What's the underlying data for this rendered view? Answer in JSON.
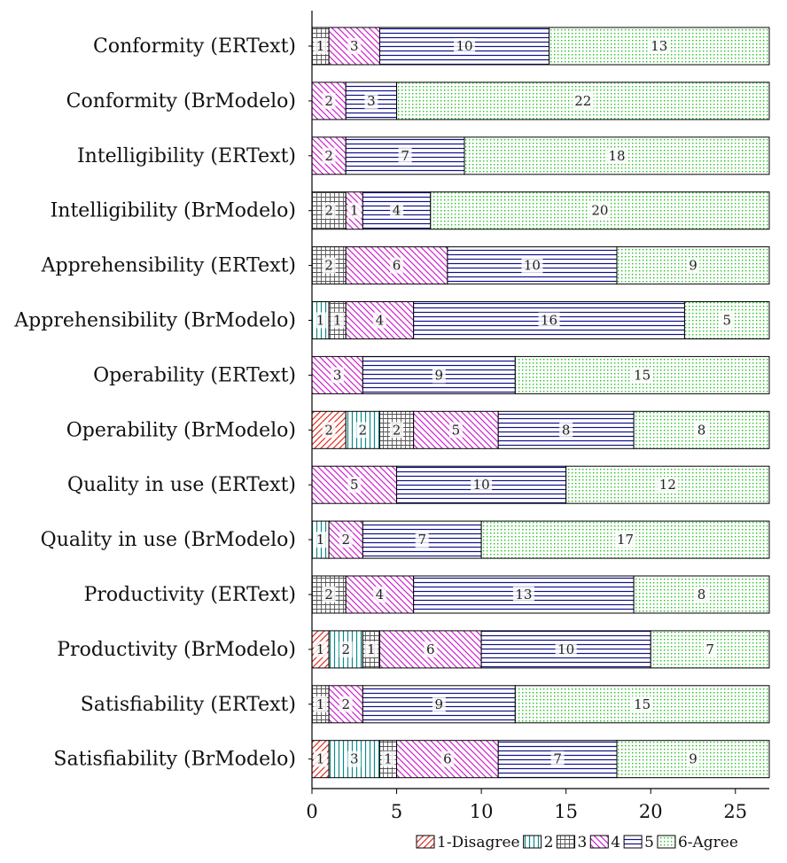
{
  "chart_data": {
    "type": "bar",
    "orientation": "horizontal",
    "stacked": true,
    "title": "",
    "xlabel": "",
    "ylabel": "",
    "xlim": [
      0,
      27
    ],
    "x_ticks": [
      0,
      5,
      10,
      15,
      20,
      25
    ],
    "grid": false,
    "legend_position": "bottom-right",
    "categories": [
      "Conformity (ERText)",
      "Conformity (BrModelo)",
      "Intelligibility (ERText)",
      "Intelligibility (BrModelo)",
      "Apprehensibility (ERText)",
      "Apprehensibility (BrModelo)",
      "Operability (ERText)",
      "Operability (BrModelo)",
      "Quality in use (ERText)",
      "Quality in use (BrModelo)",
      "Productivity (ERText)",
      "Productivity (BrModelo)",
      "Satisfiability (ERText)",
      "Satisfiability (BrModelo)"
    ],
    "series": [
      {
        "name": "1-Disagree",
        "pattern": "north-east-lines",
        "color": "#e03020",
        "values": [
          0,
          0,
          0,
          0,
          0,
          0,
          0,
          2,
          0,
          0,
          0,
          1,
          0,
          1
        ]
      },
      {
        "name": "2",
        "pattern": "vertical-lines",
        "color": "#0f8a8a",
        "values": [
          0,
          0,
          0,
          0,
          0,
          1,
          0,
          2,
          0,
          1,
          0,
          2,
          0,
          3
        ]
      },
      {
        "name": "3",
        "pattern": "grid",
        "color": "#666666",
        "values": [
          1,
          0,
          0,
          2,
          2,
          1,
          0,
          2,
          0,
          0,
          2,
          1,
          1,
          1
        ]
      },
      {
        "name": "4",
        "pattern": "north-west-lines",
        "color": "#d020d0",
        "values": [
          3,
          2,
          2,
          1,
          6,
          4,
          3,
          5,
          5,
          2,
          4,
          6,
          2,
          6
        ]
      },
      {
        "name": "5",
        "pattern": "horizontal-lines",
        "color": "#10108a",
        "values": [
          10,
          3,
          7,
          4,
          10,
          16,
          9,
          8,
          10,
          7,
          13,
          10,
          9,
          7
        ]
      },
      {
        "name": "6-Agree",
        "pattern": "dots",
        "color": "#20c020",
        "values": [
          13,
          22,
          18,
          20,
          9,
          5,
          15,
          8,
          12,
          17,
          8,
          7,
          15,
          9
        ]
      }
    ]
  }
}
